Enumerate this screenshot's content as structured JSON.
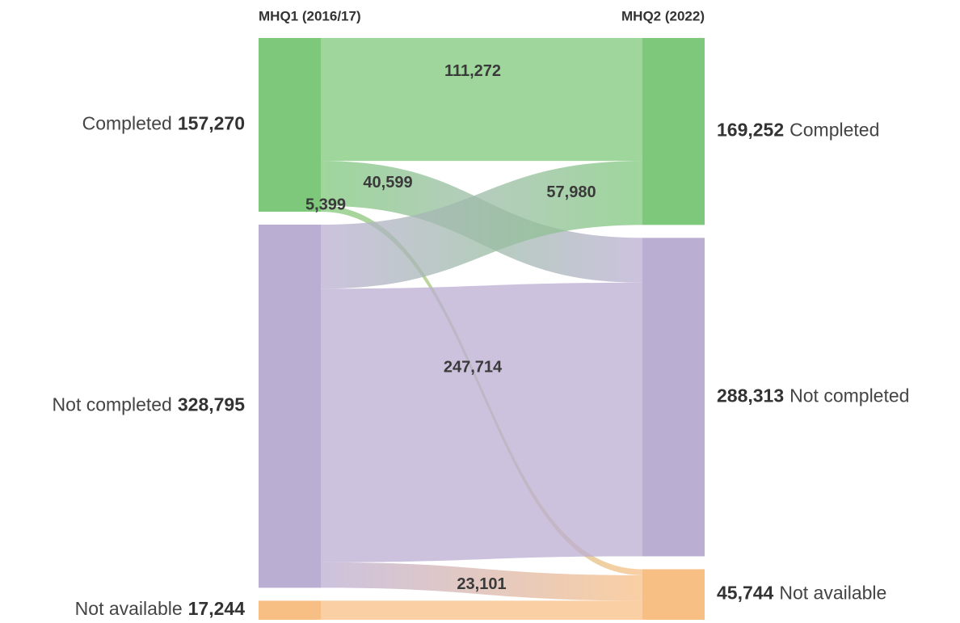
{
  "chart_data": {
    "type": "sankey",
    "column_titles": [
      "MHQ1 (2016/17)",
      "MHQ2 (2022)"
    ],
    "left": {
      "names": [
        "Completed",
        "Not completed",
        "Not available"
      ],
      "values": [
        157270,
        328795,
        17244
      ],
      "value_labels": [
        "157,270",
        "328,795",
        "17,244"
      ],
      "colors": [
        "#7dc87a",
        "#bbaed3",
        "#f8bf85"
      ]
    },
    "right": {
      "names": [
        "Completed",
        "Not completed",
        "Not available"
      ],
      "values": [
        169252,
        288313,
        45744
      ],
      "value_labels": [
        "169,252",
        "288,313",
        "45,744"
      ],
      "colors": [
        "#7dc87a",
        "#bbaed3",
        "#f8bf85"
      ]
    },
    "links": [
      {
        "source": 0,
        "target": 0,
        "value": 111272,
        "value_label": "111,272"
      },
      {
        "source": 0,
        "target": 1,
        "value": 40599,
        "value_label": "40,599"
      },
      {
        "source": 0,
        "target": 2,
        "value": 5399,
        "value_label": "5,399"
      },
      {
        "source": 1,
        "target": 0,
        "value": 57980,
        "value_label": "57,980"
      },
      {
        "source": 1,
        "target": 1,
        "value": 247714,
        "value_label": "247,714"
      },
      {
        "source": 1,
        "target": 2,
        "value": 23101,
        "value_label": "23,101"
      },
      {
        "source": 2,
        "target": 2,
        "value": 17244
      }
    ]
  }
}
